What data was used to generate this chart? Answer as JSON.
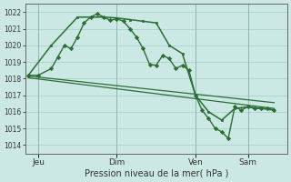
{
  "xlabel": "Pression niveau de la mer( hPa )",
  "ylim": [
    1013.5,
    1022.5
  ],
  "yticks": [
    1014,
    1015,
    1016,
    1017,
    1018,
    1019,
    1020,
    1021,
    1022
  ],
  "bg_color": "#cce8e4",
  "grid_color": "#b0d4ce",
  "line_color": "#2a6e35",
  "xtick_labels": [
    "Jeu",
    "Dim",
    "Ven",
    "Sam"
  ],
  "xtick_positions": [
    2,
    14,
    26,
    34
  ],
  "xlim": [
    0,
    40
  ],
  "line1_x": [
    0.5,
    2,
    4,
    5,
    6,
    7,
    8,
    9,
    10,
    11,
    12,
    13,
    14,
    15,
    16,
    17,
    18,
    19,
    20,
    21,
    22,
    23,
    24,
    25,
    26,
    27,
    28,
    29,
    30,
    31,
    32,
    33,
    34,
    35,
    36,
    37,
    38
  ],
  "line1_y": [
    1018.2,
    1018.2,
    1018.6,
    1019.3,
    1020.0,
    1019.8,
    1020.5,
    1021.35,
    1021.7,
    1021.9,
    1021.7,
    1021.5,
    1021.6,
    1021.45,
    1021.0,
    1020.5,
    1019.8,
    1018.85,
    1018.8,
    1019.4,
    1019.2,
    1018.6,
    1018.8,
    1018.5,
    1017.0,
    1016.1,
    1015.6,
    1015.0,
    1014.8,
    1014.4,
    1016.3,
    1016.1,
    1016.3,
    1016.2,
    1016.2,
    1016.2,
    1016.1
  ],
  "line2_x": [
    0.5,
    4,
    8,
    12,
    14,
    16,
    18,
    20,
    22,
    24,
    26,
    28,
    30,
    32,
    34,
    36,
    38
  ],
  "line2_y": [
    1018.2,
    1020.0,
    1021.7,
    1021.7,
    1021.65,
    1021.55,
    1021.45,
    1021.35,
    1020.0,
    1019.5,
    1017.0,
    1016.0,
    1015.5,
    1016.2,
    1016.3,
    1016.2,
    1016.1
  ],
  "line3_x": [
    0.5,
    38
  ],
  "line3_y": [
    1018.15,
    1016.55
  ],
  "line4_x": [
    0.5,
    38
  ],
  "line4_y": [
    1018.05,
    1016.2
  ]
}
